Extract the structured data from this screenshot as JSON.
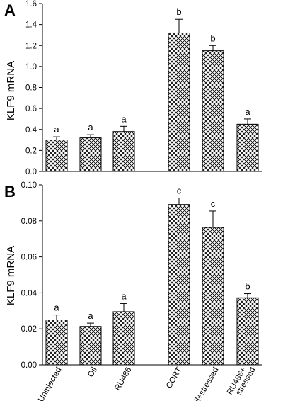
{
  "chart_data": [
    {
      "type": "bar",
      "panel": "A",
      "ylabel": "KLF9 mRNA",
      "ylim": [
        0,
        1.6
      ],
      "yticks": [
        "0.0",
        "0.2",
        "0.4",
        "0.6",
        "0.8",
        "1.0",
        "1.2",
        "1.4",
        "1.6"
      ],
      "categories": [
        "Uninjected",
        "Oil",
        "RU486",
        "CORT",
        "Oil+stressed",
        "RU486+ stressed"
      ],
      "values": [
        0.3,
        0.32,
        0.38,
        1.32,
        1.15,
        0.45
      ],
      "errors": [
        0.03,
        0.03,
        0.05,
        0.13,
        0.05,
        0.05
      ],
      "labels": [
        "a",
        "a",
        "a",
        "b",
        "b",
        "a"
      ],
      "grid": false,
      "pattern": "crosshatch"
    },
    {
      "type": "bar",
      "panel": "B",
      "ylabel": "KLF9 mRNA",
      "ylim": [
        0,
        0.11
      ],
      "yticks": [
        "0.00",
        "0.02",
        "0.04",
        "0.06",
        "0.08",
        "0.10"
      ],
      "categories": [
        "Uninjected",
        "Oil",
        "RU486",
        "CORT",
        "Oil+stressed",
        "RU486+ stressed"
      ],
      "values": [
        0.0275,
        0.0235,
        0.0325,
        0.098,
        0.084,
        0.041
      ],
      "errors": [
        0.003,
        0.002,
        0.005,
        0.004,
        0.01,
        0.0025
      ],
      "labels": [
        "a",
        "a",
        "a",
        "c",
        "c",
        "b"
      ],
      "grid": false,
      "pattern": "crosshatch"
    }
  ],
  "category_labels": {
    "uninjected": "Uninjected",
    "oil": "Oil",
    "ru486": "RU486",
    "cort": "CORT",
    "oil_stressed": "Oil+stressed",
    "ru486_stressed_line1": "RU486+",
    "ru486_stressed_line2": "stressed"
  },
  "colors": {
    "bar_fill": "#ffffff",
    "hatch": "#000000",
    "axis": "#000000"
  }
}
